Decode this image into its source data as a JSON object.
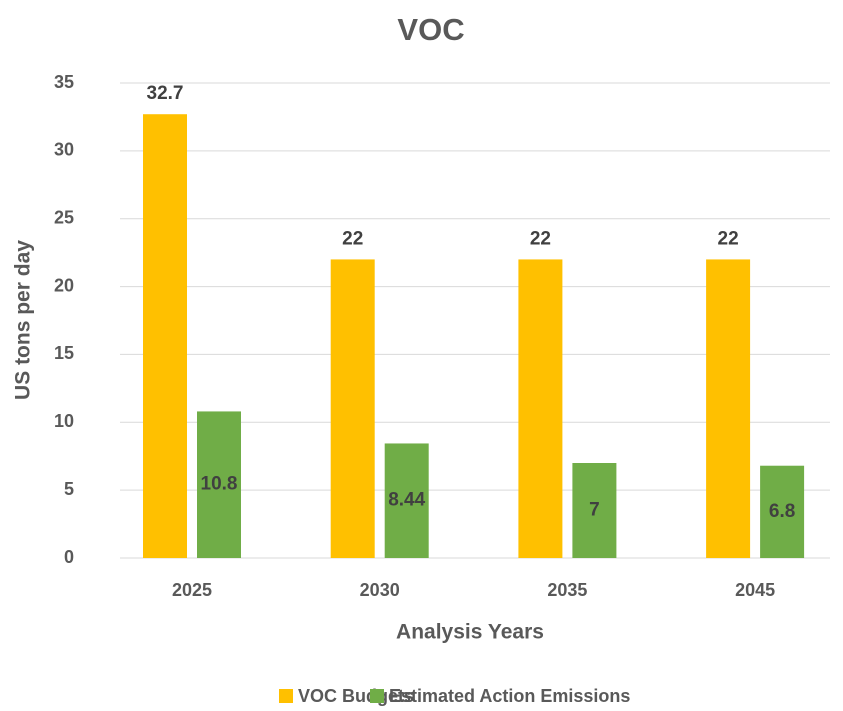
{
  "chart_data": {
    "type": "bar",
    "title": "VOC",
    "x_label": "Analysis Years",
    "y_label": "US tons per day",
    "categories": [
      "2025",
      "2030",
      "2035",
      "2045"
    ],
    "series": [
      {
        "name": "VOC Budgets",
        "color": "#FFC000",
        "values": [
          32.7,
          22,
          22,
          22
        ]
      },
      {
        "name": "Estimated Action Emissions",
        "color": "#70AD47",
        "values": [
          10.8,
          8.44,
          7,
          6.8
        ]
      }
    ],
    "ylim": [
      0,
      35
    ],
    "yticks": [
      0,
      5,
      10,
      15,
      20,
      25,
      30,
      35
    ],
    "grid": true,
    "legend": "bottom"
  }
}
